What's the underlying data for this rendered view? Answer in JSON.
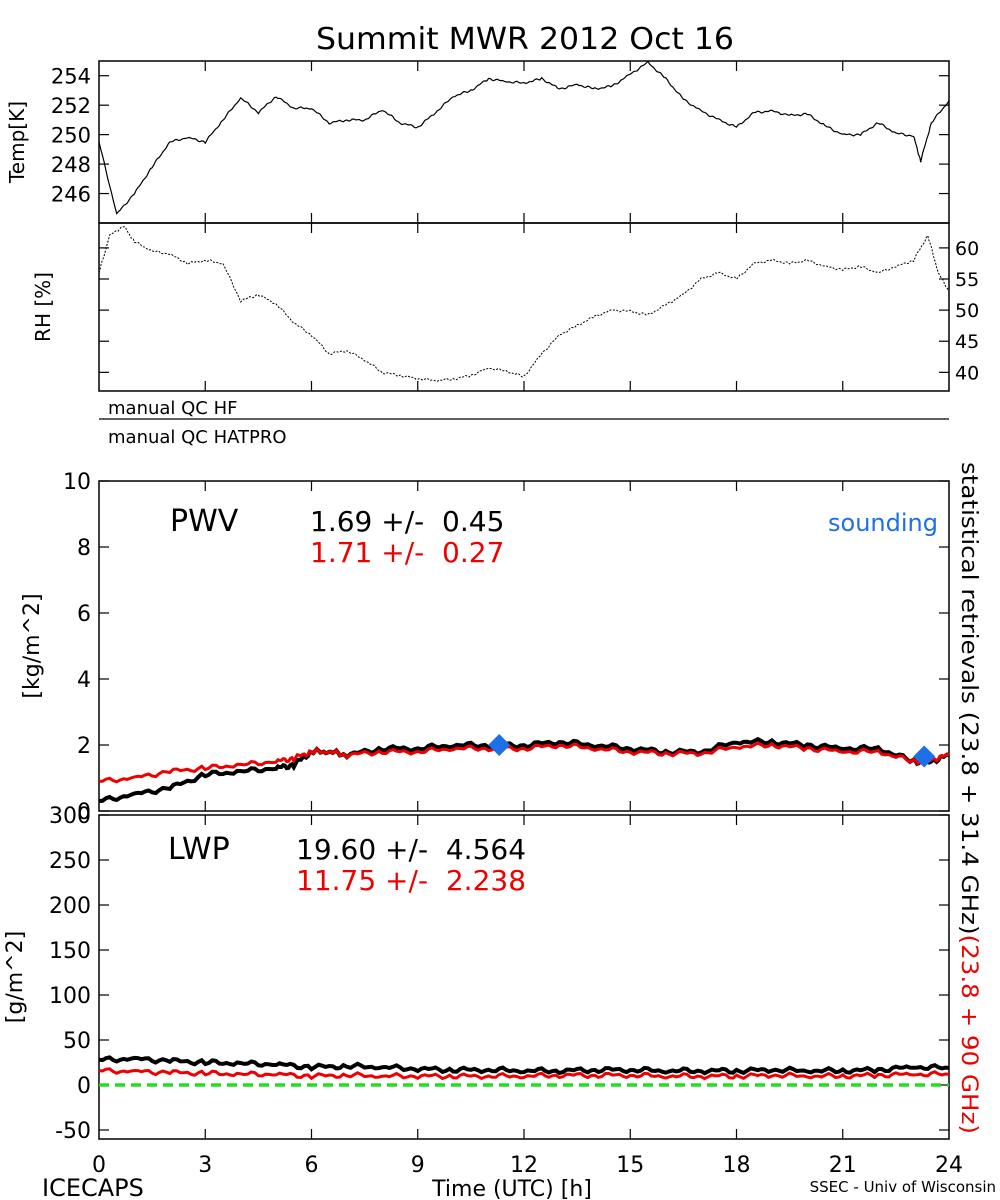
{
  "title": "Summit MWR 2012 Oct 16",
  "footer": {
    "left": "ICECAPS",
    "center": "Time (UTC) [h]",
    "right": "SSEC - Univ of Wisconsin"
  },
  "colors": {
    "primary": "#000000",
    "secondary": "#ee0000",
    "sounding": "#1e6fe8",
    "zero_line": "#22dd22"
  },
  "qc": {
    "hf_label": "manual QC HF",
    "hatpro_label": "manual QC HATPRO"
  },
  "side_label": {
    "black": "statistical retrievals (23.8 + 31.4 GHz)",
    "red": "(23.8 + 90 GHz)"
  },
  "pwv_stats": {
    "label": "PWV",
    "black": "1.69 +/-  0.45",
    "red": "1.71 +/-  0.27",
    "legend": "sounding"
  },
  "lwp_stats": {
    "label": "LWP",
    "black": "19.60 +/-  4.564",
    "red": "11.75 +/-  2.238"
  },
  "chart_data": [
    {
      "type": "line",
      "ylabel": "Temp[K]",
      "xlim": [
        0,
        24
      ],
      "ylim": [
        244,
        255
      ],
      "yticks": [
        "246",
        "248",
        "250",
        "252",
        "254"
      ],
      "series": [
        {
          "x": [
            0,
            0.5,
            1,
            1.5,
            2,
            2.5,
            3,
            3.5,
            4,
            4.5,
            5,
            5.5,
            6,
            6.5,
            7,
            7.5,
            8,
            8.5,
            9,
            9.5,
            10,
            10.5,
            11,
            11.5,
            12,
            12.5,
            13,
            13.5,
            14,
            14.5,
            15,
            15.5,
            16,
            16.5,
            17,
            17.5,
            18,
            18.5,
            19,
            19.5,
            20,
            20.5,
            21,
            21.5,
            22,
            22.5,
            23,
            23.2,
            23.5,
            24
          ],
          "y": [
            249.5,
            244.6,
            246,
            247.8,
            249.5,
            249.8,
            249.5,
            251,
            252.5,
            251.5,
            252.6,
            251.8,
            251.8,
            250.8,
            251,
            251,
            251.7,
            250.8,
            250.5,
            251.5,
            252.6,
            253,
            253.8,
            253.6,
            253.5,
            253.8,
            253.1,
            253.4,
            253.1,
            253.3,
            254.1,
            254.9,
            253.8,
            252.4,
            251.6,
            251,
            250.5,
            251.5,
            251.6,
            251.3,
            251.4,
            250.6,
            250,
            250,
            250.8,
            250.1,
            249.9,
            248.2,
            250.8,
            252.3
          ]
        }
      ]
    },
    {
      "type": "line",
      "ylabel": "RH [%]",
      "xlim": [
        0,
        24
      ],
      "ylim": [
        37,
        64
      ],
      "yticks": [
        "40",
        "45",
        "50",
        "55",
        "60"
      ],
      "series": [
        {
          "x": [
            0,
            0.3,
            0.7,
            1,
            1.5,
            2,
            2.5,
            3,
            3.5,
            4,
            4.5,
            5,
            5.5,
            6,
            6.5,
            7,
            7.5,
            8,
            8.5,
            9,
            9.5,
            10,
            10.5,
            11,
            11.5,
            12,
            12.5,
            13,
            13.5,
            14,
            14.5,
            15,
            15.5,
            16,
            16.5,
            17,
            17.5,
            18,
            18.5,
            19,
            19.5,
            20,
            20.5,
            21,
            21.5,
            22,
            22.5,
            23,
            23.4,
            23.7,
            24
          ],
          "y": [
            56,
            62,
            63.5,
            61,
            59.5,
            59,
            57.5,
            58,
            57.5,
            51.5,
            52.5,
            51,
            48,
            46,
            43,
            43.5,
            42,
            40,
            39.5,
            39,
            38.7,
            38.9,
            39.5,
            40.7,
            40.2,
            39.3,
            43,
            46,
            47.5,
            49,
            50,
            49.8,
            49.2,
            50.8,
            52.5,
            55,
            56,
            55,
            57.5,
            58,
            57.5,
            58,
            57,
            56.5,
            57,
            56,
            57,
            58,
            62,
            56,
            53
          ]
        }
      ]
    },
    {
      "type": "line",
      "ylabel": "[kg/m^2]",
      "xlim": [
        0,
        24
      ],
      "ylim": [
        0,
        10
      ],
      "yticks": [
        "0",
        "2",
        "4",
        "6",
        "8",
        "10"
      ],
      "series": [
        {
          "x": [
            0,
            1,
            2,
            3,
            4,
            5,
            5.5,
            6,
            6.5,
            7,
            8,
            9,
            10,
            11,
            12,
            13,
            14,
            15,
            16,
            17,
            18,
            19,
            20,
            21,
            22,
            23,
            23.5,
            24
          ],
          "y": [
            0.3,
            0.5,
            0.7,
            1.1,
            1.2,
            1.3,
            1.4,
            1.8,
            1.8,
            1.7,
            1.9,
            1.9,
            2,
            2,
            2,
            2.1,
            2,
            1.9,
            1.8,
            1.8,
            2.1,
            2.1,
            2,
            1.9,
            1.9,
            1.5,
            1.5,
            1.7
          ]
        },
        {
          "x": [
            0,
            1,
            2,
            3,
            4,
            5,
            5.5,
            6,
            6.5,
            7,
            8,
            9,
            10,
            11,
            12,
            13,
            14,
            15,
            16,
            17,
            18,
            19,
            20,
            21,
            22,
            23,
            23.5,
            24
          ],
          "y": [
            0.9,
            1,
            1.2,
            1.3,
            1.4,
            1.5,
            1.6,
            1.8,
            1.8,
            1.7,
            1.8,
            1.8,
            1.9,
            1.9,
            1.9,
            2,
            1.9,
            1.8,
            1.75,
            1.75,
            1.95,
            2,
            1.9,
            1.8,
            1.8,
            1.5,
            1.55,
            1.7
          ]
        }
      ],
      "soundings": [
        {
          "x": 11.3,
          "y": 2.0
        },
        {
          "x": 23.3,
          "y": 1.65
        }
      ]
    },
    {
      "type": "line",
      "ylabel": "[g/m^2]",
      "xlim": [
        0,
        24
      ],
      "ylim": [
        -60,
        300
      ],
      "yticks": [
        "-50",
        "0",
        "50",
        "100",
        "150",
        "200",
        "250",
        "300"
      ],
      "xticks": [
        "0",
        "3",
        "6",
        "9",
        "12",
        "15",
        "18",
        "21",
        "24"
      ],
      "series": [
        {
          "x": [
            0,
            1,
            2,
            3,
            4,
            5,
            6,
            7,
            8,
            9,
            10,
            11,
            12,
            13,
            14,
            15,
            16,
            17,
            18,
            19,
            20,
            21,
            22,
            23,
            24
          ],
          "y": [
            28,
            29,
            27,
            25,
            24,
            23,
            20,
            21,
            20,
            18,
            17,
            17,
            16,
            16,
            17,
            17,
            16,
            16,
            16,
            17,
            16,
            16,
            17,
            20,
            19
          ]
        },
        {
          "x": [
            0,
            1,
            2,
            3,
            4,
            5,
            6,
            7,
            8,
            9,
            10,
            11,
            12,
            13,
            14,
            15,
            16,
            17,
            18,
            19,
            20,
            21,
            22,
            23,
            24
          ],
          "y": [
            16,
            15,
            14,
            13,
            12,
            12,
            10,
            11,
            10,
            10,
            10,
            10,
            10,
            11,
            11,
            11,
            10,
            10,
            10,
            11,
            10,
            10,
            11,
            12,
            12
          ]
        }
      ],
      "reference_line": 0
    }
  ]
}
